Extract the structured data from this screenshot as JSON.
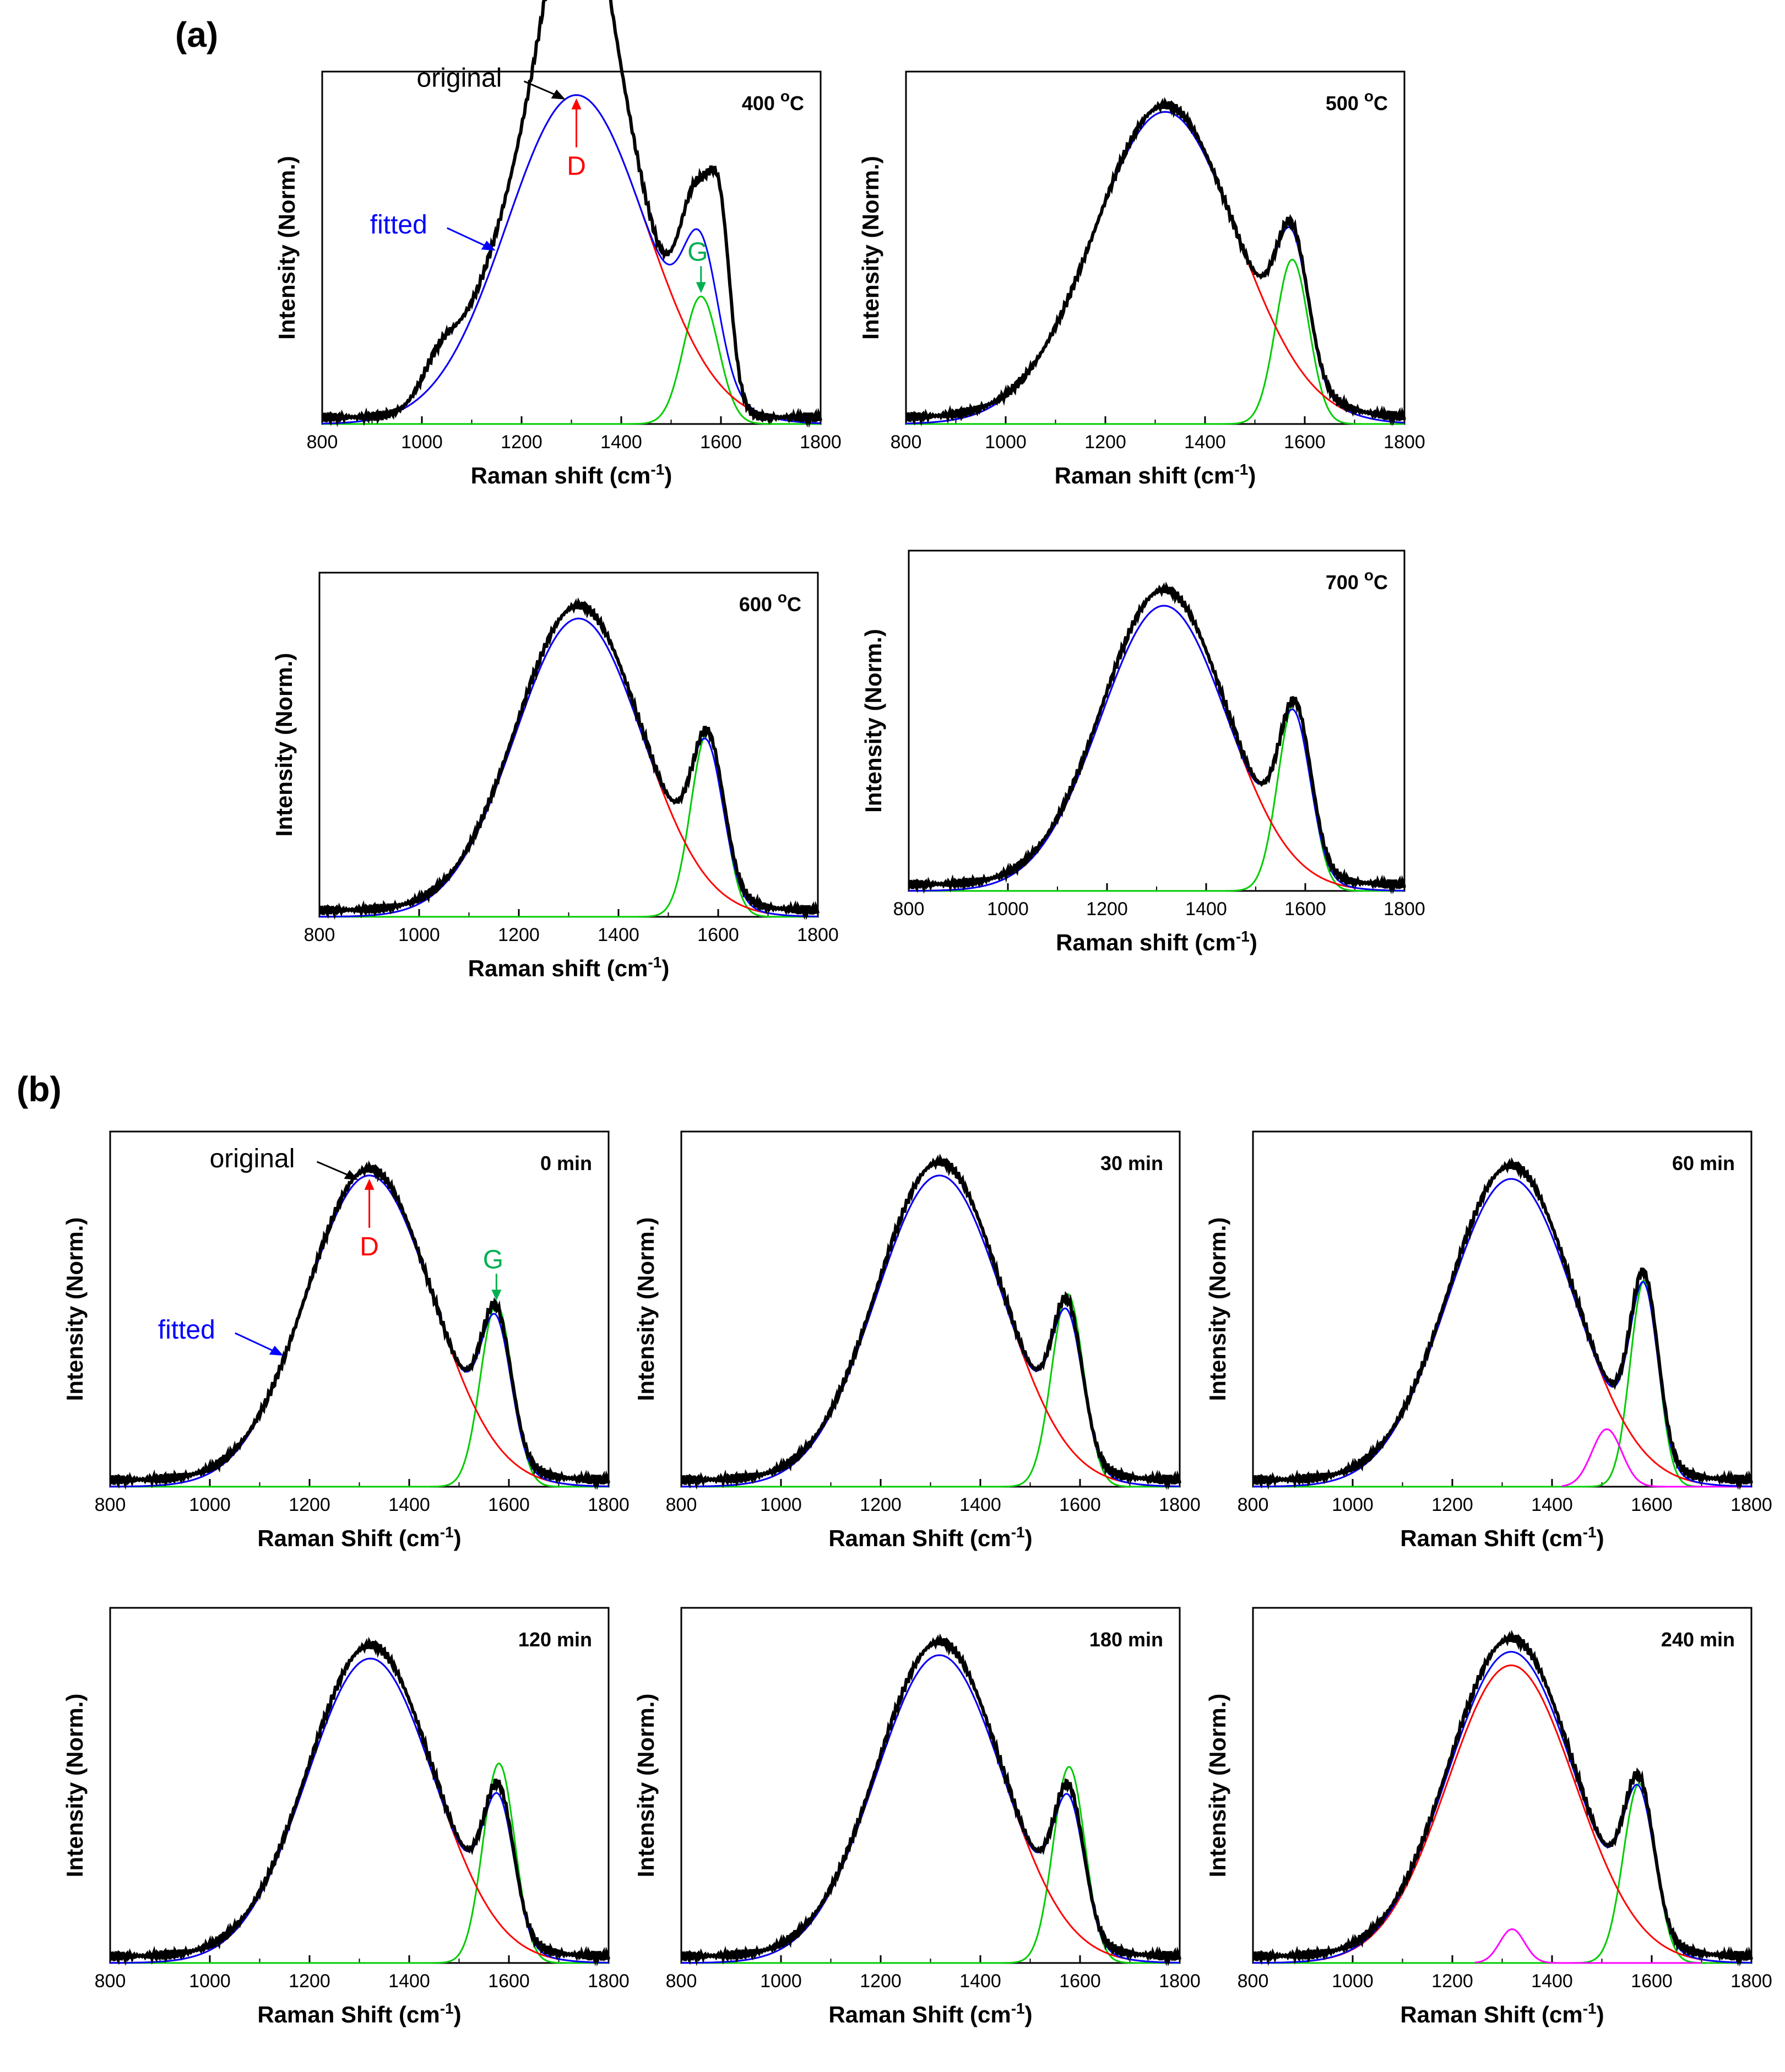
{
  "figure": {
    "panel_a_label": "(a)",
    "panel_b_label": "(b)"
  },
  "colors": {
    "original": "#000000",
    "fitted": "#0000ff",
    "D": "#ff0000",
    "G": "#00cc00",
    "extra": "#ff00ff"
  },
  "chart_data": [
    {
      "id": "a400",
      "type": "line",
      "title": "400 oC",
      "title_main": "400 ",
      "title_sup": "o",
      "title_tail": "C",
      "xlabel": "Raman shift (cm-1)",
      "xlabel_main": "Raman shift (cm",
      "xlabel_sup": "-1",
      "xlabel_tail": ")",
      "ylabel": "Intensity (Norm.)",
      "xlim": [
        800,
        1800
      ],
      "xticks": [
        800,
        1000,
        1200,
        1400,
        1600,
        1800
      ],
      "series": [
        {
          "name": "original",
          "color": "#000000",
          "peaks": [
            [
              1035,
              0.1,
              35
            ],
            [
              1150,
              0.32,
              80
            ],
            [
              1270,
              0.82,
              75
            ],
            [
              1335,
              0.92,
              60
            ],
            [
              1440,
              0.45,
              55
            ],
            [
              1555,
              0.63,
              38
            ],
            [
              1600,
              0.35,
              20
            ]
          ],
          "baseline": 0.02
        },
        {
          "name": "fitted",
          "color": "#0000ff",
          "peaks": [
            [
              1310,
              0.98,
              140
            ],
            [
              1560,
              0.37,
              35
            ]
          ],
          "baseline": 0.0
        },
        {
          "name": "D",
          "color": "#ff0000",
          "peaks": [
            [
              1310,
              0.98,
              140
            ]
          ],
          "baseline": 0.0
        },
        {
          "name": "G",
          "color": "#00cc00",
          "peaks": [
            [
              1560,
              0.38,
              35
            ]
          ],
          "baseline": 0.0
        }
      ],
      "annotations": {
        "original": "original",
        "fitted": "fitted",
        "D": "D",
        "G": "G"
      }
    },
    {
      "id": "a500",
      "type": "line",
      "title": "500 oC",
      "title_main": "500 ",
      "title_sup": "o",
      "title_tail": "C",
      "xlabel": "Raman shift (cm-1)",
      "xlabel_main": "Raman shift (cm",
      "xlabel_sup": "-1",
      "xlabel_tail": ")",
      "ylabel": "Intensity (Norm.)",
      "xlim": [
        800,
        1800
      ],
      "xticks": [
        800,
        1000,
        1200,
        1400,
        1600,
        1800
      ],
      "series": [
        {
          "name": "original",
          "color": "#000000",
          "peaks": [
            [
              1320,
              0.93,
              140
            ],
            [
              1575,
              0.4,
              32
            ]
          ],
          "baseline": 0.02
        },
        {
          "name": "fitted",
          "color": "#0000ff",
          "peaks": [
            [
              1320,
              0.93,
              145
            ],
            [
              1575,
              0.38,
              32
            ]
          ],
          "baseline": 0.0
        },
        {
          "name": "D",
          "color": "#ff0000",
          "peaks": [
            [
              1320,
              0.93,
              145
            ]
          ],
          "baseline": 0.0
        },
        {
          "name": "G",
          "color": "#00cc00",
          "peaks": [
            [
              1575,
              0.49,
              33
            ]
          ],
          "baseline": 0.0
        }
      ]
    },
    {
      "id": "a600",
      "type": "line",
      "title": "600 oC",
      "title_main": "600 ",
      "title_sup": "o",
      "title_tail": "C",
      "xlabel": "Raman shift (cm-1)",
      "xlabel_main": "Raman shift (cm",
      "xlabel_sup": "-1",
      "xlabel_tail": ")",
      "ylabel": "Intensity (Norm.)",
      "xlim": [
        800,
        1800
      ],
      "xticks": [
        800,
        1000,
        1200,
        1400,
        1600,
        1800
      ],
      "series": [
        {
          "name": "original",
          "color": "#000000",
          "peaks": [
            [
              1320,
              0.93,
              125
            ],
            [
              1580,
              0.44,
              32
            ]
          ],
          "baseline": 0.02
        },
        {
          "name": "fitted",
          "color": "#0000ff",
          "peaks": [
            [
              1320,
              0.91,
              128
            ],
            [
              1578,
              0.42,
              33
            ]
          ],
          "baseline": 0.0
        },
        {
          "name": "D",
          "color": "#ff0000",
          "peaks": [
            [
              1320,
              0.91,
              128
            ]
          ],
          "baseline": 0.0
        },
        {
          "name": "G",
          "color": "#00cc00",
          "peaks": [
            [
              1578,
              0.56,
              33
            ]
          ],
          "baseline": 0.0
        }
      ]
    },
    {
      "id": "a700",
      "type": "line",
      "title": "700 oC",
      "title_main": "700 ",
      "title_sup": "o",
      "title_tail": "C",
      "xlabel": "Raman shift (cm-1)",
      "xlabel_main": "Raman shift (cm",
      "xlabel_sup": "-1",
      "xlabel_tail": ")",
      "ylabel": "Intensity (Norm.)",
      "xlim": [
        800,
        1800
      ],
      "xticks": [
        800,
        1000,
        1200,
        1400,
        1600,
        1800
      ],
      "series": [
        {
          "name": "original",
          "color": "#000000",
          "peaks": [
            [
              1315,
              0.91,
              125
            ],
            [
              1580,
              0.47,
              32
            ]
          ],
          "baseline": 0.02
        },
        {
          "name": "fitted",
          "color": "#0000ff",
          "peaks": [
            [
              1315,
              0.88,
              128
            ],
            [
              1578,
              0.45,
              33
            ]
          ],
          "baseline": 0.0
        },
        {
          "name": "D",
          "color": "#ff0000",
          "peaks": [
            [
              1315,
              0.88,
              128
            ]
          ],
          "baseline": 0.0
        },
        {
          "name": "G",
          "color": "#00cc00",
          "peaks": [
            [
              1578,
              0.58,
              33
            ]
          ],
          "baseline": 0.0
        }
      ]
    },
    {
      "id": "b0",
      "type": "line",
      "title": "0 min",
      "xlabel": "Raman Shift (cm-1)",
      "xlabel_main": "Raman Shift (cm",
      "xlabel_sup": "-1",
      "xlabel_tail": ")",
      "ylabel": "Intensity (Norm.)",
      "xlim": [
        800,
        1800
      ],
      "xticks": [
        800,
        1000,
        1200,
        1400,
        1600,
        1800
      ],
      "series": [
        {
          "name": "original",
          "color": "#000000",
          "peaks": [
            [
              1320,
              0.92,
              125
            ],
            [
              1575,
              0.4,
              30
            ]
          ],
          "baseline": 0.02
        },
        {
          "name": "fitted",
          "color": "#0000ff",
          "peaks": [
            [
              1320,
              0.92,
              128
            ],
            [
              1575,
              0.38,
              30
            ]
          ],
          "baseline": 0.0
        },
        {
          "name": "D",
          "color": "#ff0000",
          "peaks": [
            [
              1320,
              0.92,
              128
            ]
          ],
          "baseline": 0.0
        },
        {
          "name": "G",
          "color": "#00cc00",
          "peaks": [
            [
              1575,
              0.54,
              32
            ]
          ],
          "baseline": 0.0
        }
      ],
      "annotations": {
        "original": "original",
        "fitted": "fitted",
        "D": "D",
        "G": "G"
      }
    },
    {
      "id": "b30",
      "type": "line",
      "title": "30 min",
      "xlabel": "Raman Shift (cm-1)",
      "xlabel_main": "Raman Shift (cm",
      "xlabel_sup": "-1",
      "xlabel_tail": ")",
      "ylabel": "Intensity (Norm.)",
      "xlim": [
        800,
        1800
      ],
      "xticks": [
        800,
        1000,
        1200,
        1400,
        1600,
        1800
      ],
      "series": [
        {
          "name": "original",
          "color": "#000000",
          "peaks": [
            [
              1318,
              0.94,
              125
            ],
            [
              1575,
              0.42,
              30
            ]
          ],
          "baseline": 0.02
        },
        {
          "name": "fitted",
          "color": "#0000ff",
          "peaks": [
            [
              1318,
              0.92,
              128
            ],
            [
              1575,
              0.4,
              31
            ]
          ],
          "baseline": 0.0
        },
        {
          "name": "D",
          "color": "#ff0000",
          "peaks": [
            [
              1318,
              0.92,
              128
            ]
          ],
          "baseline": 0.0
        },
        {
          "name": "G",
          "color": "#00cc00",
          "peaks": [
            [
              1575,
              0.57,
              32
            ]
          ],
          "baseline": 0.0
        }
      ]
    },
    {
      "id": "b60",
      "type": "line",
      "title": "60 min",
      "xlabel": "Raman Shift (cm-1)",
      "xlabel_main": "Raman Shift (cm",
      "xlabel_sup": "-1",
      "xlabel_tail": ")",
      "ylabel": "Intensity (Norm.)",
      "xlim": [
        800,
        1800
      ],
      "xticks": [
        800,
        1000,
        1200,
        1400,
        1600,
        1800
      ],
      "series": [
        {
          "name": "original",
          "color": "#000000",
          "peaks": [
            [
              1318,
              0.93,
              125
            ],
            [
              1585,
              0.52,
              28
            ]
          ],
          "baseline": 0.02
        },
        {
          "name": "fitted",
          "color": "#0000ff",
          "peaks": [
            [
              1318,
              0.91,
              128
            ],
            [
              1585,
              0.5,
              28
            ]
          ],
          "baseline": 0.0
        },
        {
          "name": "D",
          "color": "#ff0000",
          "peaks": [
            [
              1318,
              0.91,
              128
            ]
          ],
          "baseline": 0.0
        },
        {
          "name": "G",
          "color": "#00cc00",
          "peaks": [
            [
              1585,
              0.61,
              28
            ]
          ],
          "baseline": 0.0
        },
        {
          "name": "extra",
          "color": "#ff00ff",
          "peaks": [
            [
              1510,
              0.17,
              30
            ]
          ],
          "baseline": 0.0,
          "range": [
            1420,
            1800
          ]
        }
      ]
    },
    {
      "id": "b120",
      "type": "line",
      "title": "120 min",
      "xlabel": "Raman Shift (cm-1)",
      "xlabel_main": "Raman Shift (cm",
      "xlabel_sup": "-1",
      "xlabel_tail": ")",
      "ylabel": "Intensity (Norm.)",
      "xlim": [
        800,
        1800
      ],
      "xticks": [
        800,
        1000,
        1200,
        1400,
        1600,
        1800
      ],
      "series": [
        {
          "name": "original",
          "color": "#000000",
          "peaks": [
            [
              1322,
              0.92,
              125
            ],
            [
              1580,
              0.4,
              30
            ]
          ],
          "baseline": 0.02
        },
        {
          "name": "fitted",
          "color": "#0000ff",
          "peaks": [
            [
              1322,
              0.9,
              128
            ],
            [
              1580,
              0.38,
              31
            ]
          ],
          "baseline": 0.0
        },
        {
          "name": "D",
          "color": "#ff0000",
          "peaks": [
            [
              1322,
              0.9,
              128
            ]
          ],
          "baseline": 0.0
        },
        {
          "name": "G",
          "color": "#00cc00",
          "peaks": [
            [
              1580,
              0.59,
              32
            ]
          ],
          "baseline": 0.0
        }
      ]
    },
    {
      "id": "b180",
      "type": "line",
      "title": "180 min",
      "xlabel": "Raman Shift (cm-1)",
      "xlabel_main": "Raman Shift (cm",
      "xlabel_sup": "-1",
      "xlabel_tail": ")",
      "ylabel": "Intensity (Norm.)",
      "xlim": [
        800,
        1800
      ],
      "xticks": [
        800,
        1000,
        1200,
        1400,
        1600,
        1800
      ],
      "series": [
        {
          "name": "original",
          "color": "#000000",
          "peaks": [
            [
              1318,
              0.93,
              125
            ],
            [
              1578,
              0.4,
              30
            ]
          ],
          "baseline": 0.02
        },
        {
          "name": "fitted",
          "color": "#0000ff",
          "peaks": [
            [
              1318,
              0.91,
              128
            ],
            [
              1578,
              0.38,
              31
            ]
          ],
          "baseline": 0.0
        },
        {
          "name": "D",
          "color": "#ff0000",
          "peaks": [
            [
              1318,
              0.91,
              128
            ]
          ],
          "baseline": 0.0
        },
        {
          "name": "G",
          "color": "#00cc00",
          "peaks": [
            [
              1578,
              0.58,
              32
            ]
          ],
          "baseline": 0.0
        }
      ]
    },
    {
      "id": "b240",
      "type": "line",
      "title": "240 min",
      "xlabel": "Raman Shift (cm-1)",
      "xlabel_main": "Raman Shift (cm",
      "xlabel_sup": "-1",
      "xlabel_tail": ")",
      "ylabel": "Intensity (Norm.)",
      "xlim": [
        800,
        1800
      ],
      "xticks": [
        800,
        1000,
        1200,
        1400,
        1600,
        1800
      ],
      "series": [
        {
          "name": "original",
          "color": "#000000",
          "peaks": [
            [
              1318,
              0.94,
              125
            ],
            [
              1575,
              0.42,
              30
            ]
          ],
          "baseline": 0.02
        },
        {
          "name": "fitted",
          "color": "#0000ff",
          "peaks": [
            [
              1318,
              0.92,
              128
            ],
            [
              1575,
              0.4,
              31
            ]
          ],
          "baseline": 0.0
        },
        {
          "name": "D",
          "color": "#ff0000",
          "peaks": [
            [
              1318,
              0.88,
              128
            ]
          ],
          "baseline": 0.0
        },
        {
          "name": "G",
          "color": "#00cc00",
          "peaks": [
            [
              1575,
              0.53,
              32
            ]
          ],
          "baseline": 0.0
        },
        {
          "name": "extra",
          "color": "#ff00ff",
          "peaks": [
            [
              1320,
              0.1,
              25
            ]
          ],
          "baseline": 0.0,
          "range": [
            1245,
            1700
          ]
        }
      ]
    }
  ]
}
